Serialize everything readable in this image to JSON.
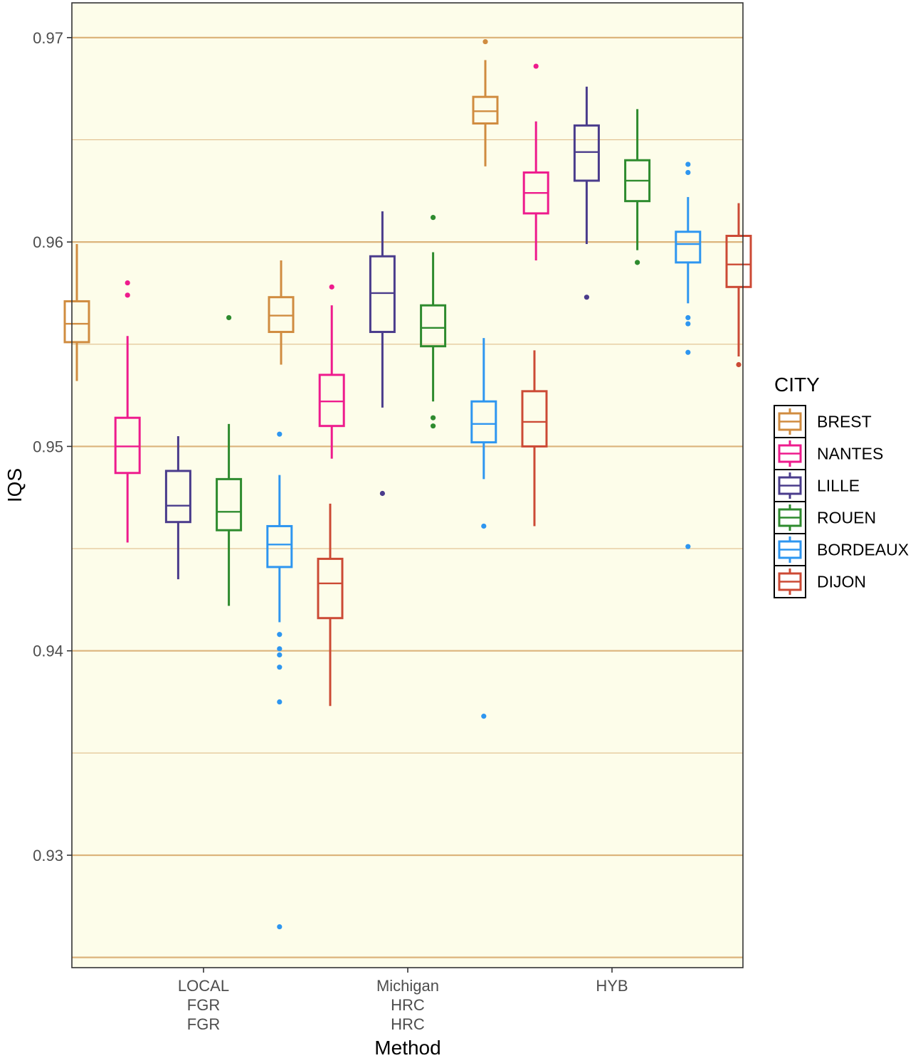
{
  "chart_data": {
    "type": "boxplot",
    "title": "",
    "xlabel": "Method",
    "ylabel": "IQS",
    "ylim": [
      0.9245,
      0.9717
    ],
    "yticks": [
      "0.93",
      "0.94",
      "0.95",
      "0.96",
      "0.97"
    ],
    "major_grid": [
      0.925,
      0.93,
      0.94,
      0.95,
      0.96,
      0.97
    ],
    "minor_grid": [
      0.935,
      0.945,
      0.955,
      0.965
    ],
    "grid": true,
    "panel_background": "#fdfdea",
    "grid_color": "#dcb47c",
    "categories": [
      {
        "label_lines": [
          "LOCAL",
          "FGR",
          "FGR"
        ]
      },
      {
        "label_lines": [
          "Michigan",
          "HRC",
          "HRC"
        ]
      },
      {
        "label_lines": [
          "HYB"
        ]
      }
    ],
    "legend": {
      "title": "CITY",
      "position": "right"
    },
    "series": [
      {
        "name": "BREST",
        "color": "#d08c40",
        "boxes": [
          {
            "min": 0.9532,
            "q1": 0.9551,
            "median": 0.956,
            "q3": 0.9571,
            "max": 0.9599,
            "outliers": []
          },
          {
            "min": 0.954,
            "q1": 0.9556,
            "median": 0.9564,
            "q3": 0.9573,
            "max": 0.9591,
            "outliers": []
          },
          {
            "min": 0.9637,
            "q1": 0.9658,
            "median": 0.9664,
            "q3": 0.9671,
            "max": 0.9689,
            "outliers": [
              0.9698
            ]
          }
        ]
      },
      {
        "name": "NANTES",
        "color": "#ee1b8d",
        "boxes": [
          {
            "min": 0.9453,
            "q1": 0.9487,
            "median": 0.95,
            "q3": 0.9514,
            "max": 0.9554,
            "outliers": [
              0.9574,
              0.958
            ]
          },
          {
            "min": 0.9494,
            "q1": 0.951,
            "median": 0.9522,
            "q3": 0.9535,
            "max": 0.9569,
            "outliers": [
              0.9578
            ]
          },
          {
            "min": 0.9591,
            "q1": 0.9614,
            "median": 0.9624,
            "q3": 0.9634,
            "max": 0.9659,
            "outliers": [
              0.9686
            ]
          }
        ]
      },
      {
        "name": "LILLE",
        "color": "#4a3c8c",
        "boxes": [
          {
            "min": 0.9435,
            "q1": 0.9463,
            "median": 0.9471,
            "q3": 0.9488,
            "max": 0.9505,
            "outliers": []
          },
          {
            "min": 0.9519,
            "q1": 0.9556,
            "median": 0.9575,
            "q3": 0.9593,
            "max": 0.9615,
            "outliers": [
              0.9477
            ]
          },
          {
            "min": 0.9599,
            "q1": 0.963,
            "median": 0.9644,
            "q3": 0.9657,
            "max": 0.9676,
            "outliers": [
              0.9573
            ]
          }
        ]
      },
      {
        "name": "ROUEN",
        "color": "#2e8b2e",
        "boxes": [
          {
            "min": 0.9422,
            "q1": 0.9459,
            "median": 0.9468,
            "q3": 0.9484,
            "max": 0.9511,
            "outliers": [
              0.9563
            ]
          },
          {
            "min": 0.9522,
            "q1": 0.9549,
            "median": 0.9558,
            "q3": 0.9569,
            "max": 0.9595,
            "outliers": [
              0.951,
              0.9514,
              0.9612
            ]
          },
          {
            "min": 0.9596,
            "q1": 0.962,
            "median": 0.963,
            "q3": 0.964,
            "max": 0.9665,
            "outliers": [
              0.959
            ]
          }
        ]
      },
      {
        "name": "BORDEAUX",
        "color": "#2e96f0",
        "boxes": [
          {
            "min": 0.9414,
            "q1": 0.9441,
            "median": 0.9452,
            "q3": 0.9461,
            "max": 0.9486,
            "outliers": [
              0.9265,
              0.9375,
              0.9392,
              0.9398,
              0.9401,
              0.9408,
              0.9506
            ]
          },
          {
            "min": 0.9484,
            "q1": 0.9502,
            "median": 0.9511,
            "q3": 0.9522,
            "max": 0.9553,
            "outliers": [
              0.9368,
              0.9461
            ]
          },
          {
            "min": 0.957,
            "q1": 0.959,
            "median": 0.9599,
            "q3": 0.9605,
            "max": 0.9622,
            "outliers": [
              0.9451,
              0.9546,
              0.956,
              0.9563,
              0.9634,
              0.9638
            ]
          }
        ]
      },
      {
        "name": "DIJON",
        "color": "#cc4a35",
        "boxes": [
          {
            "min": 0.9373,
            "q1": 0.9416,
            "median": 0.9433,
            "q3": 0.9445,
            "max": 0.9472,
            "outliers": []
          },
          {
            "min": 0.9461,
            "q1": 0.95,
            "median": 0.9512,
            "q3": 0.9527,
            "max": 0.9547,
            "outliers": []
          },
          {
            "min": 0.9544,
            "q1": 0.9578,
            "median": 0.9589,
            "q3": 0.9603,
            "max": 0.9619,
            "outliers": [
              0.954
            ]
          }
        ]
      }
    ]
  }
}
